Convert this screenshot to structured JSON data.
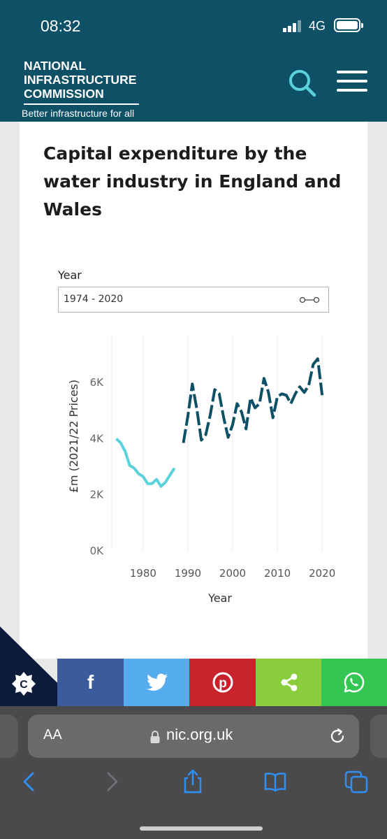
{
  "status_bar": {
    "time": "08:32",
    "network": "4G"
  },
  "header": {
    "logo_lines": [
      "NATIONAL",
      "INFRASTRUCTURE",
      "COMMISSION"
    ],
    "tagline": "Better infrastructure for all",
    "icons": [
      "search-icon",
      "hamburger-menu-icon"
    ]
  },
  "filter": {
    "label": "Year",
    "value": "1974 - 2020"
  },
  "chart_data": {
    "type": "line",
    "title": "Capital expenditure by the water industry in England and Wales",
    "xlabel": "Year",
    "ylabel": "£m (2021/22 Prices)",
    "xlim": [
      1973,
      2022
    ],
    "ylim": [
      0,
      7700
    ],
    "x_ticks": [
      1980,
      1990,
      2000,
      2010,
      2020
    ],
    "y_ticks": [
      {
        "value": 0,
        "label": "0K"
      },
      {
        "value": 2000,
        "label": "2K"
      },
      {
        "value": 4000,
        "label": "4K"
      },
      {
        "value": 6000,
        "label": "6K"
      }
    ],
    "grid": "vertical",
    "series": [
      {
        "color": "#5ad2dc",
        "style": "solid",
        "x": [
          1974,
          1975,
          1976,
          1977,
          1978,
          1979,
          1980,
          1981,
          1982,
          1983,
          1984,
          1985,
          1986,
          1987
        ],
        "values": [
          4000,
          3850,
          3550,
          3050,
          2950,
          2750,
          2650,
          2400,
          2400,
          2550,
          2300,
          2450,
          2700,
          2950
        ]
      },
      {
        "color": "#0e5066",
        "style": "dashed",
        "x": [
          1989,
          1990,
          1991,
          1992,
          1993,
          1994,
          1995,
          1996,
          1997,
          1998,
          1999,
          2000,
          2001,
          2002,
          2003,
          2004,
          2005,
          2006,
          2007,
          2008,
          2009,
          2010,
          2011,
          2012,
          2013,
          2014,
          2015,
          2016,
          2017,
          2018,
          2019,
          2020
        ],
        "values": [
          3850,
          4800,
          5950,
          5050,
          3950,
          4150,
          4850,
          5750,
          5600,
          4750,
          4050,
          4500,
          5250,
          4950,
          4350,
          5450,
          5100,
          5250,
          6150,
          5650,
          4750,
          5500,
          5600,
          5550,
          5250,
          5600,
          5850,
          5650,
          5900,
          6650,
          6850,
          5550
        ]
      }
    ]
  },
  "share_bar": {
    "buttons": [
      {
        "name": "facebook",
        "color": "#3b5b9c"
      },
      {
        "name": "twitter",
        "color": "#55acee"
      },
      {
        "name": "pinterest",
        "color": "#c8232c"
      },
      {
        "name": "share",
        "color": "#8ccd3f"
      },
      {
        "name": "whatsapp",
        "color": "#35c553"
      }
    ]
  },
  "browser": {
    "text_size_label": "AA",
    "url": "nic.org.uk",
    "toolbar": [
      "back-icon",
      "forward-icon",
      "share-icon",
      "bookmarks-icon",
      "tabs-icon"
    ]
  }
}
